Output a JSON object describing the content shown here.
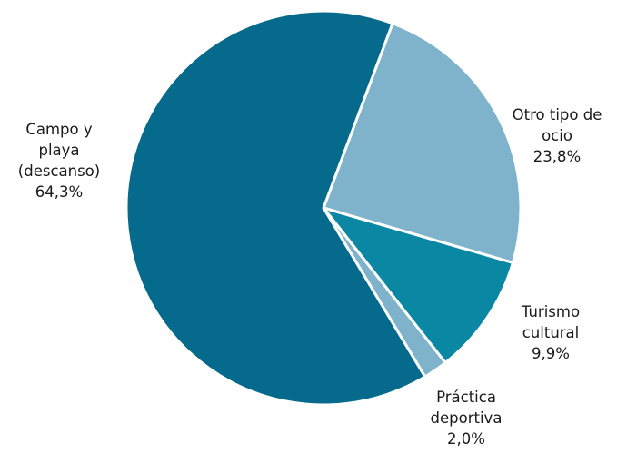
{
  "chart_data": {
    "type": "pie",
    "title": "",
    "start_angle_deg": 20.5,
    "direction": "clockwise",
    "slices": [
      {
        "label": [
          "Otro tipo de",
          "ocio"
        ],
        "value_text": "23,8%",
        "value": 23.8,
        "color": "#7fb3cc"
      },
      {
        "label": [
          "Turismo",
          "cultural"
        ],
        "value_text": "9,9%",
        "value": 9.9,
        "color": "#0a87a3"
      },
      {
        "label": [
          "Práctica",
          "deportiva"
        ],
        "value_text": "2,0%",
        "value": 2.0,
        "color": "#7fb3cc"
      },
      {
        "label": [
          "Campo y",
          "playa",
          "(descanso)"
        ],
        "value_text": "64,3%",
        "value": 64.3,
        "color": "#056a8c"
      }
    ],
    "legend": false
  }
}
